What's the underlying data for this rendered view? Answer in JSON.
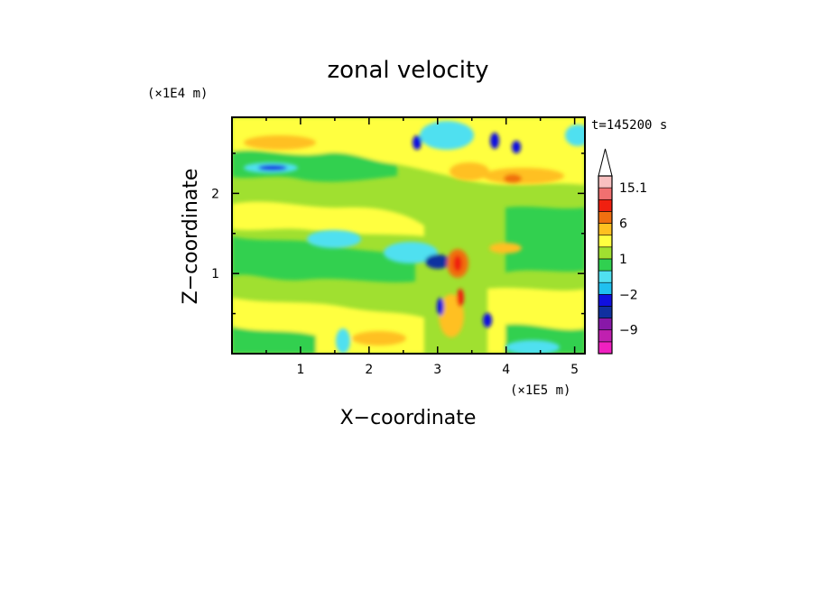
{
  "chart_data": {
    "type": "heatmap",
    "title": "zonal velocity",
    "xlabel": "X−coordinate",
    "ylabel": "Z−coordinate",
    "x_unit": "(×1E5 m)",
    "y_unit": "(×1E4 m)",
    "time_label": "t=145200 s",
    "xlim": [
      0,
      5.15
    ],
    "ylim": [
      0,
      2.95
    ],
    "x_ticks": [
      "1",
      "2",
      "3",
      "4",
      "5"
    ],
    "y_ticks": [
      "1",
      "2"
    ],
    "colorbar": {
      "labels": [
        "15.1",
        "6",
        "1",
        "−2",
        "−9"
      ],
      "levels": [
        -15,
        -12,
        -9,
        -6,
        -3,
        -2,
        -1,
        0,
        1,
        2,
        3,
        6,
        9,
        12,
        15.1
      ],
      "colors": [
        "#f020c0",
        "#c020b0",
        "#8818a8",
        "#1030a0",
        "#1010e0",
        "#20c0f0",
        "#50e0f0",
        "#30d050",
        "#a0e030",
        "#ffff40",
        "#ffc020",
        "#f07010",
        "#f02010",
        "#f07070",
        "#f8c0c0"
      ]
    },
    "grid": false
  }
}
